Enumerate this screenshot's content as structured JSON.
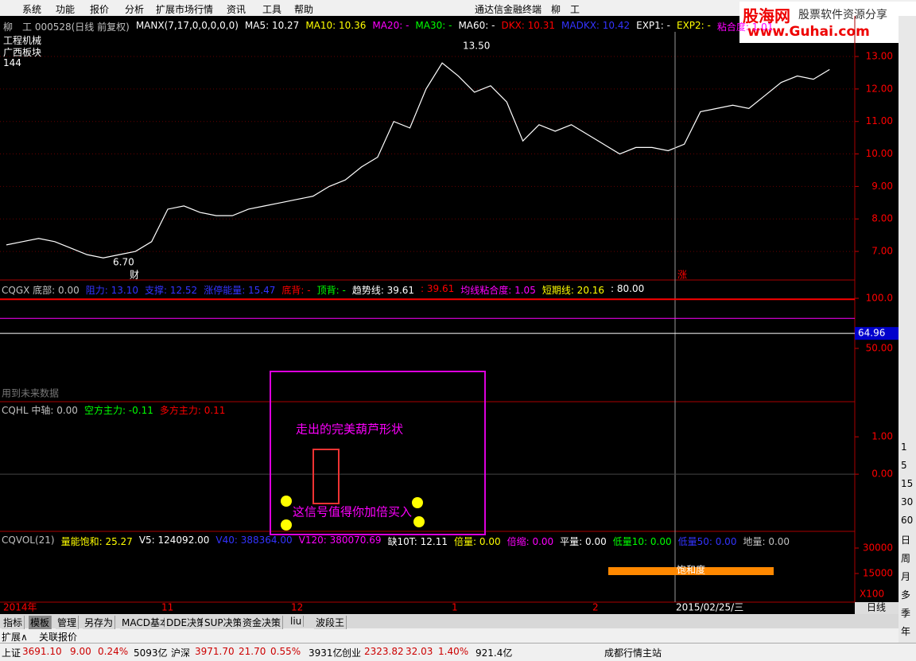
{
  "menu": [
    "系统",
    "功能",
    "报价",
    "分析",
    "扩展市场行情",
    "资讯",
    "工具",
    "帮助"
  ],
  "terminal_title": "通达信金融终端",
  "stock_short": "柳　工",
  "watermark": {
    "brand": "股海网",
    "slogan": "股票软件资源分享",
    "url": "www.Guhai.com"
  },
  "main_panel": {
    "header": [
      "柳　工 000528(日线 前复权)",
      "MANX(7,17,0,0,0,0,0)",
      "MA5: 10.27",
      "MA10: 10.36",
      "MA20: -",
      "MA30: -",
      "MA60: -",
      "DKX: 10.31",
      "MADKX: 10.42",
      "EXP1: -",
      "EXP2: -",
      "粘合度: 1.01"
    ],
    "labels": [
      "工程机械",
      "广西板块",
      "144"
    ],
    "high_label": "13.50",
    "low_label": "6.70",
    "event_labels": [
      "财",
      "涨"
    ],
    "closes": [
      7.2,
      7.3,
      7.4,
      7.3,
      7.1,
      6.9,
      6.8,
      6.9,
      7.0,
      7.3,
      8.3,
      8.4,
      8.2,
      8.1,
      8.1,
      8.3,
      8.4,
      8.5,
      8.6,
      8.7,
      9.0,
      9.2,
      9.6,
      9.9,
      11.0,
      10.8,
      12.0,
      12.8,
      12.4,
      11.9,
      12.1,
      11.6,
      10.4,
      10.9,
      10.7,
      10.9,
      10.6,
      10.3,
      10.0,
      10.2,
      10.2,
      10.1,
      10.3,
      11.3,
      11.4,
      11.5,
      11.4,
      11.8,
      12.2,
      12.4,
      12.3,
      12.6
    ],
    "ylim": [
      6.12,
      13.76
    ],
    "yticks": [
      {
        "value": 7,
        "label": "7.00"
      },
      {
        "value": 8,
        "label": "8.00"
      },
      {
        "value": 9,
        "label": "9.00"
      },
      {
        "value": 10,
        "label": "10.00"
      },
      {
        "value": 11,
        "label": "11.00"
      },
      {
        "value": 12,
        "label": "12.00"
      },
      {
        "value": 13,
        "label": "13.00"
      }
    ]
  },
  "cqgx_panel": {
    "header": [
      "CQGX 底部: 0.00",
      "阻力: 13.10",
      "支撑: 12.52",
      "涨停能量: 15.47",
      "底背: -",
      "顶背: -",
      "趋势线: 39.61",
      ": 39.61",
      "均线粘合度: 1.05",
      "短期线: 20.16",
      ": 80.00"
    ],
    "ylim": [
      -3.2,
      115.9
    ],
    "yticks": [
      {
        "value": 100,
        "label": "100.0"
      },
      {
        "value": 50,
        "label": "50.00"
      }
    ],
    "current": {
      "value": 64.96,
      "label": "64.96"
    },
    "note": "用到未来数据"
  },
  "cqhl_panel": {
    "header": [
      "CQHL 中轴: 0.00",
      "空方主力: -0.11",
      "多方主力: 0.11"
    ],
    "ylim": [
      -1.53,
      1.94
    ],
    "yticks": [
      {
        "value": 1,
        "label": "1.00"
      },
      {
        "value": 0,
        "label": "0.00"
      }
    ],
    "annotations": [
      "走出的完美葫芦形状",
      "这信号值得你加倍买入"
    ]
  },
  "cqvol_panel": {
    "header": [
      "CQVOL(21)",
      "量能饱和: 25.27",
      "V5: 124092.00",
      "V40: 388364.00",
      "V120: 380070.69",
      "缺10T: 12.11",
      "倍量: 0.00",
      "倍缩: 0.00",
      "平量: 0.00",
      "低量10: 0.00",
      "低量50: 0.00",
      "地量: 0.00"
    ],
    "ylim": [
      -1875,
      38906
    ],
    "yticks": [
      30000,
      15000
    ],
    "unit": "X100",
    "band_label": "饱和度"
  },
  "date_axis": [
    "2014年",
    "11",
    "12",
    "1",
    "2",
    "2015/02/25/三"
  ],
  "period_label": "日线",
  "tabs": [
    "指标",
    "模板",
    "管理",
    "另存为",
    "MACD基本",
    "DDE决策",
    "SUP决策",
    "资金决策",
    "liu",
    "波段王"
  ],
  "sub_tabs": [
    "扩展∧",
    "关联报价"
  ],
  "status": [
    "上证",
    "3691.10",
    "9.00",
    "0.24%",
    "5093亿",
    "沪深",
    "3971.70",
    "21.70",
    "0.55%",
    "3931亿",
    "创业",
    "2323.82",
    "32.03",
    "1.40%",
    "921.4亿",
    "成都行情主站"
  ],
  "periods": [
    "1",
    "5",
    "15",
    "30",
    "60",
    "日",
    "周",
    "月",
    "多",
    "季",
    "年"
  ]
}
